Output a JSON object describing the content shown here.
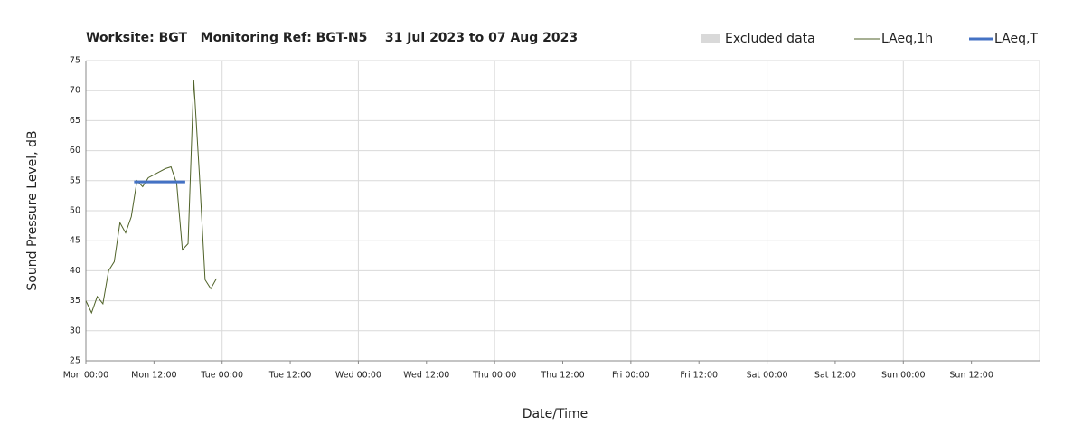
{
  "chart_data": {
    "type": "line",
    "title": "Worksite: BGT   Monitoring Ref: BGT-N5    31 Jul 2023 to 07 Aug 2023",
    "xlabel": "Date/Time",
    "ylabel": "Sound Pressure Level, dB",
    "series": [
      {
        "name": "Excluded data",
        "color": "#d9d9d9",
        "x": [],
        "values": []
      },
      {
        "name": "LAeq,1h",
        "color": "#4f6228",
        "x": [
          0,
          1,
          2,
          3,
          4,
          5,
          6,
          7,
          8,
          9,
          10,
          11,
          12,
          13,
          14,
          15,
          16,
          17,
          18,
          19,
          20,
          21,
          22,
          23
        ],
        "values": [
          35,
          33,
          35.7,
          34.5,
          40,
          41.5,
          48,
          46.3,
          49,
          55,
          54,
          55.5,
          56,
          56.5,
          57,
          57.3,
          54.5,
          43.5,
          44.5,
          71.8,
          56,
          38.5,
          37,
          38.7
        ]
      },
      {
        "name": "LAeq,T",
        "color": "#4472c4",
        "x": [
          8.5,
          17.5
        ],
        "values": [
          54.8,
          54.8
        ]
      }
    ],
    "xlim": [
      0,
      168
    ],
    "xticks": [
      {
        "value": 0,
        "label": "Mon 00:00"
      },
      {
        "value": 12,
        "label": "Mon 12:00"
      },
      {
        "value": 24,
        "label": "Tue 00:00"
      },
      {
        "value": 36,
        "label": "Tue 12:00"
      },
      {
        "value": 48,
        "label": "Wed 00:00"
      },
      {
        "value": 60,
        "label": "Wed 12:00"
      },
      {
        "value": 72,
        "label": "Thu 00:00"
      },
      {
        "value": 84,
        "label": "Thu 12:00"
      },
      {
        "value": 96,
        "label": "Fri 00:00"
      },
      {
        "value": 108,
        "label": "Fri 12:00"
      },
      {
        "value": 120,
        "label": "Sat 00:00"
      },
      {
        "value": 132,
        "label": "Sat 12:00"
      },
      {
        "value": 144,
        "label": "Sun 00:00"
      },
      {
        "value": 156,
        "label": "Sun 12:00"
      }
    ],
    "ylim": [
      25,
      75
    ],
    "yticks": [
      25,
      30,
      35,
      40,
      45,
      50,
      55,
      60,
      65,
      70,
      75
    ],
    "grid": true,
    "legend": "top-right"
  }
}
